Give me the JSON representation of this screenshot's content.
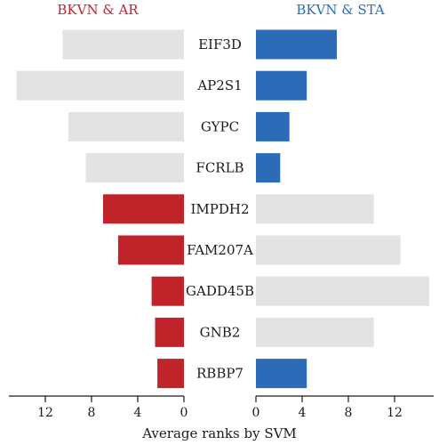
{
  "chart_data": {
    "type": "bar",
    "xlabel": "Average ranks by SVM",
    "panels": [
      {
        "title": "BKVN & AR",
        "xlim": [
          15.5,
          0
        ],
        "ticks": [
          12,
          8,
          4,
          0
        ],
        "highlight_color": "#c1232b",
        "background_color": "#e3e3e3"
      },
      {
        "title": "BKVN & STA",
        "xlim": [
          0,
          15.5
        ],
        "ticks": [
          0,
          4,
          8,
          12
        ],
        "highlight_color": "#2b6bb8",
        "background_color": "#e3e3e3"
      }
    ],
    "categories": [
      "EIF3D",
      "AP2S1",
      "GYPC",
      "FCRLB",
      "IMPDH2",
      "FAM207A",
      "GADD45B",
      "GNB2",
      "RBBP7"
    ],
    "series": [
      {
        "name": "BKVN & AR",
        "values": [
          10.5,
          14.5,
          10.0,
          8.5,
          7.0,
          5.7,
          2.8,
          2.5,
          2.3
        ],
        "highlighted": [
          false,
          false,
          false,
          false,
          true,
          true,
          true,
          true,
          true
        ]
      },
      {
        "name": "BKVN & STA",
        "values": [
          7.0,
          4.4,
          2.9,
          2.1,
          10.2,
          12.5,
          15.0,
          10.2,
          4.4
        ],
        "highlighted": [
          true,
          true,
          true,
          true,
          false,
          false,
          false,
          false,
          true
        ]
      }
    ]
  }
}
